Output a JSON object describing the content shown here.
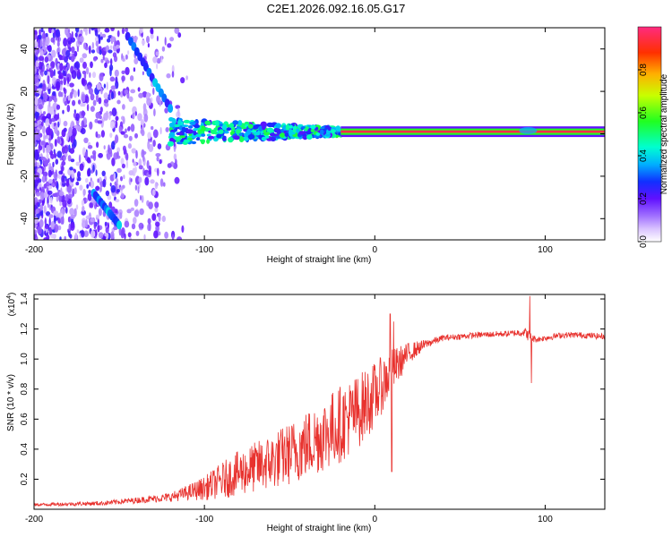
{
  "title": "C2E1.2026.092.16.05.G17",
  "chart_data": [
    {
      "type": "heatmap",
      "name": "spectrogram",
      "xlabel": "Height of straight line (km)",
      "ylabel": "Frequency (Hz)",
      "xlim": [
        -200,
        135
      ],
      "ylim": [
        -50,
        50
      ],
      "xticks": [
        -200,
        -100,
        0,
        100
      ],
      "yticks": [
        -40,
        -20,
        0,
        20,
        40
      ],
      "colorbar": {
        "label": "Normalized spectral amplitude",
        "range": [
          0,
          1
        ],
        "ticks": [
          "0.0",
          "0.2",
          "0.4",
          "0.6",
          "0.8"
        ],
        "tick_values": [
          0.0,
          0.2,
          0.4,
          0.6,
          0.8
        ]
      },
      "features": [
        {
          "name": "carrier line",
          "x_range": [
            -120,
            135
          ],
          "frequency_hz": 1,
          "amplitude": 0.95
        },
        {
          "name": "descending trace upper",
          "x": [
            -145,
            -120
          ],
          "frequency_hz": [
            46,
            12
          ],
          "amplitude": 0.4
        },
        {
          "name": "descending trace lower",
          "x": [
            -165,
            -150
          ],
          "frequency_hz": [
            -28,
            -43
          ],
          "amplitude": 0.4
        }
      ]
    },
    {
      "type": "line",
      "name": "snr",
      "xlabel": "Height of straight line (km)",
      "ylabel": "SNR (10 * v/v)",
      "y_multiplier_label": "(x10",
      "y_multiplier_exp": "4",
      "y_multiplier_close": ")",
      "xlim": [
        -200,
        135
      ],
      "ylim": [
        0,
        1.43
      ],
      "xticks": [
        -200,
        -100,
        0,
        100
      ],
      "yticks": [
        0.2,
        0.4,
        0.6,
        0.8,
        1.0,
        1.2,
        1.4
      ],
      "color": "#e8322e",
      "series": [
        {
          "name": "SNR envelope",
          "x": [
            -200,
            -160,
            -140,
            -120,
            -110,
            -100,
            -90,
            -80,
            -70,
            -60,
            -50,
            -40,
            -30,
            -20,
            -10,
            0,
            10,
            20,
            30,
            40,
            60,
            80,
            88,
            90,
            92,
            95,
            100,
            110,
            120,
            135
          ],
          "values": [
            0.03,
            0.04,
            0.06,
            0.08,
            0.11,
            0.14,
            0.19,
            0.24,
            0.28,
            0.32,
            0.37,
            0.43,
            0.5,
            0.57,
            0.65,
            0.76,
            0.92,
            1.04,
            1.1,
            1.14,
            1.16,
            1.17,
            1.18,
            1.16,
            1.14,
            1.13,
            1.14,
            1.16,
            1.16,
            1.15
          ],
          "noise": [
            0.01,
            0.015,
            0.02,
            0.03,
            0.05,
            0.08,
            0.12,
            0.15,
            0.17,
            0.19,
            0.21,
            0.23,
            0.25,
            0.26,
            0.25,
            0.22,
            0.15,
            0.07,
            0.03,
            0.02,
            0.02,
            0.02,
            0.03,
            0.04,
            0.03,
            0.02,
            0.02,
            0.02,
            0.02,
            0.02
          ]
        },
        {
          "name": "spikes",
          "x": [
            9,
            10,
            11,
            91,
            92
          ],
          "values": [
            1.3,
            0.25,
            1.25,
            1.42,
            0.84
          ]
        }
      ]
    }
  ]
}
